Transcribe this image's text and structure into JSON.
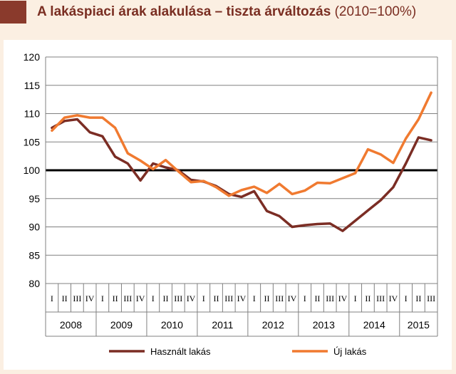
{
  "title": {
    "main": "A lakáspiaci árak alakulása – tiszta árváltozás",
    "sub": "(2010=100%)"
  },
  "chart_data": {
    "type": "line",
    "ylim": [
      80,
      120
    ],
    "yticks": [
      80,
      85,
      90,
      95,
      100,
      105,
      110,
      115,
      120
    ],
    "reference_line": 100,
    "quarter_labels": [
      "I",
      "II",
      "III",
      "IV",
      "I",
      "II",
      "III",
      "IV",
      "I",
      "II",
      "III",
      "IV",
      "I",
      "II",
      "III",
      "IV",
      "I",
      "II",
      "III",
      "IV",
      "I",
      "II",
      "III",
      "IV",
      "I",
      "II",
      "III",
      "IV",
      "I",
      "II",
      "III"
    ],
    "years": [
      {
        "label": "2008",
        "quarters": 4
      },
      {
        "label": "2009",
        "quarters": 4
      },
      {
        "label": "2010",
        "quarters": 4
      },
      {
        "label": "2011",
        "quarters": 4
      },
      {
        "label": "2012",
        "quarters": 4
      },
      {
        "label": "2013",
        "quarters": 4
      },
      {
        "label": "2014",
        "quarters": 4
      },
      {
        "label": "2015",
        "quarters": 3
      }
    ],
    "series": [
      {
        "name": "Használt lakás",
        "color": "#7b2d24",
        "values": [
          107.5,
          108.7,
          109.0,
          106.7,
          106.0,
          102.4,
          101.2,
          98.2,
          101.2,
          100.5,
          100.0,
          98.3,
          98.0,
          97.2,
          95.8,
          95.3,
          96.3,
          92.8,
          91.9,
          90.0,
          90.3,
          90.5,
          90.6,
          89.3,
          91.1,
          92.9,
          94.7,
          97.0,
          101.2,
          105.8,
          105.3
        ]
      },
      {
        "name": "Új lakás",
        "color": "#f07a30",
        "values": [
          107.0,
          109.3,
          109.7,
          109.3,
          109.3,
          107.5,
          103.0,
          101.7,
          100.2,
          101.8,
          99.8,
          97.9,
          98.1,
          97.0,
          95.5,
          96.5,
          97.1,
          96.0,
          97.6,
          95.8,
          96.4,
          97.8,
          97.7,
          98.6,
          99.5,
          103.7,
          102.8,
          101.3,
          105.6,
          109.0,
          113.7
        ]
      }
    ],
    "legend_position": "bottom"
  },
  "colors": {
    "background": "#fbefe2",
    "title": "#7a2e22",
    "title_square": "#8a3a2c",
    "grid": "#808080",
    "reference": "#000000"
  }
}
